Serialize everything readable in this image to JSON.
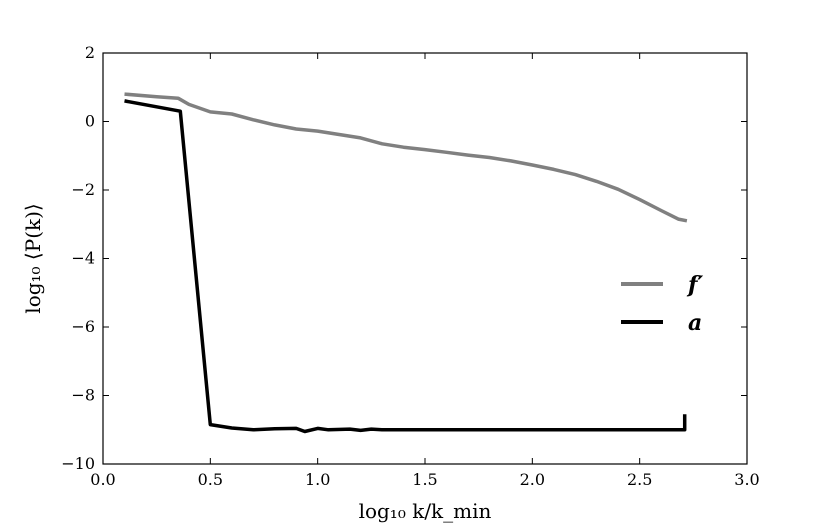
{
  "chart_data": {
    "type": "line",
    "title": "",
    "xlabel": "log₁₀ k/k_min",
    "ylabel": "log₁₀ ⟨P(k)⟩",
    "xlim": [
      0.0,
      3.0
    ],
    "ylim": [
      -10,
      2
    ],
    "x_ticks": [
      0.0,
      0.5,
      1.0,
      1.5,
      2.0,
      2.5,
      3.0
    ],
    "x_tick_labels": [
      "0.0",
      "0.5",
      "1.0",
      "1.5",
      "2.0",
      "2.5",
      "3.0"
    ],
    "y_ticks": [
      2,
      0,
      -2,
      -4,
      -6,
      -8,
      -10
    ],
    "y_tick_labels": [
      "2",
      "0",
      "−2",
      "−4",
      "−6",
      "−8",
      "−10"
    ],
    "grid": false,
    "legend_position": "center-right",
    "series": [
      {
        "name": "f′",
        "color": "#808080",
        "points": [
          [
            0.1,
            0.8
          ],
          [
            0.25,
            0.72
          ],
          [
            0.35,
            0.68
          ],
          [
            0.4,
            0.5
          ],
          [
            0.5,
            0.28
          ],
          [
            0.6,
            0.22
          ],
          [
            0.7,
            0.05
          ],
          [
            0.8,
            -0.1
          ],
          [
            0.9,
            -0.22
          ],
          [
            1.0,
            -0.28
          ],
          [
            1.1,
            -0.38
          ],
          [
            1.2,
            -0.48
          ],
          [
            1.3,
            -0.65
          ],
          [
            1.4,
            -0.75
          ],
          [
            1.5,
            -0.82
          ],
          [
            1.6,
            -0.9
          ],
          [
            1.7,
            -0.98
          ],
          [
            1.8,
            -1.05
          ],
          [
            1.9,
            -1.15
          ],
          [
            2.0,
            -1.27
          ],
          [
            2.1,
            -1.4
          ],
          [
            2.2,
            -1.55
          ],
          [
            2.3,
            -1.75
          ],
          [
            2.4,
            -1.98
          ],
          [
            2.5,
            -2.28
          ],
          [
            2.6,
            -2.6
          ],
          [
            2.68,
            -2.85
          ],
          [
            2.72,
            -2.9
          ]
        ]
      },
      {
        "name": "a",
        "color": "#000000",
        "points": [
          [
            0.1,
            0.6
          ],
          [
            0.36,
            0.3
          ],
          [
            0.5,
            -8.85
          ],
          [
            0.6,
            -8.95
          ],
          [
            0.7,
            -9.0
          ],
          [
            0.8,
            -8.97
          ],
          [
            0.9,
            -8.96
          ],
          [
            0.94,
            -9.05
          ],
          [
            1.0,
            -8.96
          ],
          [
            1.05,
            -9.0
          ],
          [
            1.15,
            -8.98
          ],
          [
            1.2,
            -9.02
          ],
          [
            1.25,
            -8.98
          ],
          [
            1.3,
            -9.0
          ],
          [
            1.4,
            -9.0
          ],
          [
            1.6,
            -9.0
          ],
          [
            2.0,
            -9.0
          ],
          [
            2.4,
            -9.0
          ],
          [
            2.71,
            -9.0
          ],
          [
            2.71,
            -8.55
          ]
        ]
      }
    ]
  }
}
